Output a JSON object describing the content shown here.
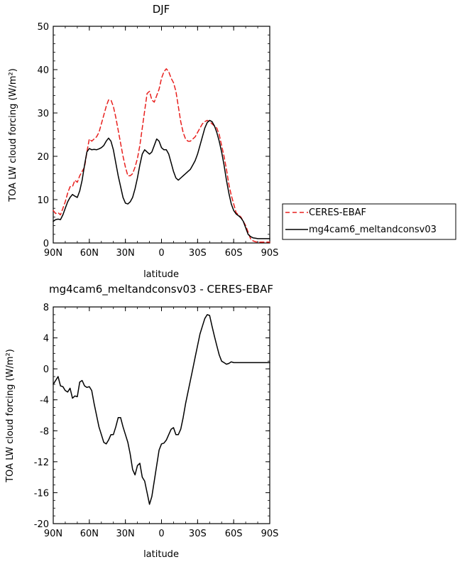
{
  "chart_data": [
    {
      "type": "line",
      "title": "DJF",
      "xlabel": "latitude",
      "ylabel": "TOA LW cloud forcing (W/m²)",
      "xlim": [
        90,
        -90
      ],
      "ylim": [
        0,
        50
      ],
      "xticks": [
        90,
        60,
        30,
        0,
        -30,
        -60,
        -90
      ],
      "xtick_labels": [
        "90N",
        "60N",
        "30N",
        "0",
        "30S",
        "60S",
        "90S"
      ],
      "yticks": [
        0,
        10,
        20,
        30,
        40,
        50
      ],
      "ytick_labels": [
        "0",
        "10",
        "20",
        "30",
        "40",
        "50"
      ],
      "legend": {
        "position": "right",
        "entries": [
          "CERES-EBAF",
          "mg4cam6_meltandconsv03"
        ]
      },
      "series": [
        {
          "name": "CERES-EBAF",
          "color": "#e8201e",
          "dash": "dashed",
          "x": [
            90,
            88,
            86,
            84,
            82,
            80,
            78,
            76,
            74,
            72,
            70,
            68,
            66,
            64,
            62,
            60,
            58,
            56,
            54,
            52,
            50,
            48,
            46,
            44,
            42,
            40,
            38,
            36,
            34,
            32,
            30,
            28,
            26,
            24,
            22,
            20,
            18,
            16,
            14,
            12,
            10,
            8,
            6,
            4,
            2,
            0,
            -2,
            -4,
            -6,
            -8,
            -10,
            -12,
            -14,
            -16,
            -18,
            -20,
            -22,
            -24,
            -26,
            -28,
            -30,
            -32,
            -34,
            -36,
            -38,
            -40,
            -42,
            -44,
            -46,
            -48,
            -50,
            -52,
            -54,
            -56,
            -58,
            -60,
            -62,
            -64,
            -66,
            -68,
            -70,
            -72,
            -74,
            -76,
            -78,
            -80,
            -82,
            -84,
            -86,
            -88,
            -90
          ],
          "y": [
            7.5,
            6.8,
            7.0,
            6.5,
            8.0,
            9.5,
            11.5,
            13.0,
            13.0,
            14.5,
            14.0,
            15.5,
            16.5,
            17.5,
            21.0,
            24.0,
            23.5,
            24.0,
            24.5,
            25.5,
            27.5,
            29.5,
            31.5,
            33.0,
            33.0,
            31.5,
            29.0,
            26.0,
            23.0,
            20.0,
            17.5,
            15.5,
            15.5,
            16.0,
            17.5,
            19.5,
            22.5,
            26.5,
            30.5,
            34.5,
            35.0,
            33.0,
            32.5,
            34.0,
            35.5,
            38.0,
            39.5,
            40.2,
            39.5,
            38.0,
            37.0,
            35.0,
            31.5,
            28.0,
            25.5,
            24.0,
            23.5,
            23.5,
            24.0,
            24.5,
            25.5,
            26.5,
            27.5,
            28.0,
            28.3,
            28.0,
            27.5,
            27.0,
            26.5,
            25.0,
            22.5,
            20.0,
            17.0,
            13.5,
            11.0,
            9.0,
            7.0,
            6.5,
            6.0,
            5.0,
            4.0,
            2.5,
            1.0,
            0.5,
            0.3,
            0.2,
            0.2,
            0.2,
            0.2,
            0.2,
            0.2
          ]
        },
        {
          "name": "mg4cam6_meltandconsv03",
          "color": "#000000",
          "dash": "solid",
          "x": [
            90,
            88,
            86,
            84,
            82,
            80,
            78,
            76,
            74,
            72,
            70,
            68,
            66,
            64,
            62,
            60,
            58,
            56,
            54,
            52,
            50,
            48,
            46,
            44,
            42,
            40,
            38,
            36,
            34,
            32,
            30,
            28,
            26,
            24,
            22,
            20,
            18,
            16,
            14,
            12,
            10,
            8,
            6,
            4,
            2,
            0,
            -2,
            -4,
            -6,
            -8,
            -10,
            -12,
            -14,
            -16,
            -18,
            -20,
            -22,
            -24,
            -26,
            -28,
            -30,
            -32,
            -34,
            -36,
            -38,
            -40,
            -42,
            -44,
            -46,
            -48,
            -50,
            -52,
            -54,
            -56,
            -58,
            -60,
            -62,
            -64,
            -66,
            -68,
            -70,
            -72,
            -74,
            -76,
            -78,
            -80,
            -82,
            -84,
            -86,
            -88,
            -90
          ],
          "y": [
            5.0,
            5.4,
            5.5,
            5.4,
            6.5,
            8.0,
            9.5,
            10.5,
            11.2,
            10.8,
            10.5,
            12.0,
            14.5,
            18.0,
            21.0,
            21.8,
            21.5,
            21.6,
            21.5,
            21.7,
            22.0,
            22.5,
            23.5,
            24.2,
            23.5,
            21.5,
            18.5,
            15.5,
            13.0,
            10.5,
            9.2,
            9.0,
            9.5,
            10.5,
            12.5,
            15.0,
            18.0,
            20.5,
            21.5,
            21.0,
            20.5,
            21.0,
            22.5,
            24.0,
            23.5,
            22.0,
            21.5,
            21.5,
            20.5,
            18.5,
            16.5,
            15.0,
            14.5,
            15.0,
            15.5,
            16.0,
            16.5,
            17.0,
            18.0,
            19.0,
            20.5,
            22.5,
            24.5,
            26.5,
            27.8,
            28.3,
            28.0,
            27.0,
            25.5,
            23.5,
            21.0,
            18.0,
            14.5,
            11.5,
            9.0,
            7.5,
            6.7,
            6.3,
            5.8,
            5.0,
            3.5,
            2.0,
            1.5,
            1.2,
            1.1,
            1.0,
            1.0,
            1.0,
            1.0,
            1.0,
            1.0
          ]
        }
      ]
    },
    {
      "type": "line",
      "title": "mg4cam6_meltandconsv03 - CERES-EBAF",
      "xlabel": "latitude",
      "ylabel": "TOA LW cloud forcing (W/m²)",
      "xlim": [
        90,
        -90
      ],
      "ylim": [
        -20,
        8
      ],
      "xticks": [
        90,
        60,
        30,
        0,
        -30,
        -60,
        -90
      ],
      "xtick_labels": [
        "90N",
        "60N",
        "30N",
        "0",
        "30S",
        "60S",
        "90S"
      ],
      "yticks": [
        8,
        4,
        0,
        -4,
        -8,
        -12,
        -16,
        -20
      ],
      "ytick_labels": [
        "8",
        "4",
        "0",
        "-4",
        "-8",
        "-12",
        "-16",
        "-20"
      ],
      "series": [
        {
          "color": "#000000",
          "dash": "solid",
          "x": [
            90,
            88,
            86,
            84,
            82,
            80,
            78,
            76,
            74,
            72,
            70,
            68,
            66,
            64,
            62,
            60,
            58,
            56,
            54,
            52,
            50,
            48,
            46,
            44,
            42,
            40,
            38,
            36,
            34,
            32,
            30,
            28,
            26,
            24,
            22,
            20,
            18,
            16,
            14,
            12,
            10,
            8,
            6,
            4,
            2,
            0,
            -2,
            -4,
            -6,
            -8,
            -10,
            -12,
            -14,
            -16,
            -18,
            -20,
            -22,
            -24,
            -26,
            -28,
            -30,
            -32,
            -34,
            -36,
            -38,
            -40,
            -42,
            -44,
            -46,
            -48,
            -50,
            -52,
            -54,
            -56,
            -58,
            -60,
            -62,
            -64,
            -66,
            -68,
            -70,
            -72,
            -74,
            -76,
            -78,
            -80,
            -82,
            -84,
            -86,
            -88,
            -90
          ],
          "y": [
            -2.0,
            -1.5,
            -1.0,
            -2.2,
            -2.3,
            -2.8,
            -3.0,
            -2.5,
            -3.8,
            -3.5,
            -3.6,
            -1.7,
            -1.5,
            -2.2,
            -2.4,
            -2.3,
            -2.8,
            -4.5,
            -6.0,
            -7.5,
            -8.5,
            -9.5,
            -9.7,
            -9.2,
            -8.5,
            -8.5,
            -7.5,
            -6.3,
            -6.3,
            -7.5,
            -8.5,
            -9.5,
            -11.0,
            -13.0,
            -13.7,
            -12.5,
            -12.2,
            -14.0,
            -14.5,
            -16.0,
            -17.5,
            -16.5,
            -14.5,
            -12.5,
            -10.5,
            -9.7,
            -9.6,
            -9.2,
            -8.5,
            -7.8,
            -7.6,
            -8.5,
            -8.5,
            -7.8,
            -6.3,
            -4.5,
            -3.0,
            -1.5,
            0.0,
            1.5,
            3.0,
            4.5,
            5.5,
            6.5,
            7.0,
            6.9,
            5.5,
            4.2,
            3.0,
            1.8,
            1.0,
            0.8,
            0.6,
            0.7,
            0.9,
            0.8,
            0.8,
            0.8,
            0.8,
            0.8,
            0.8,
            0.8,
            0.8,
            0.8,
            0.8,
            0.8,
            0.8,
            0.8,
            0.8,
            0.8,
            0.8
          ]
        }
      ]
    }
  ]
}
